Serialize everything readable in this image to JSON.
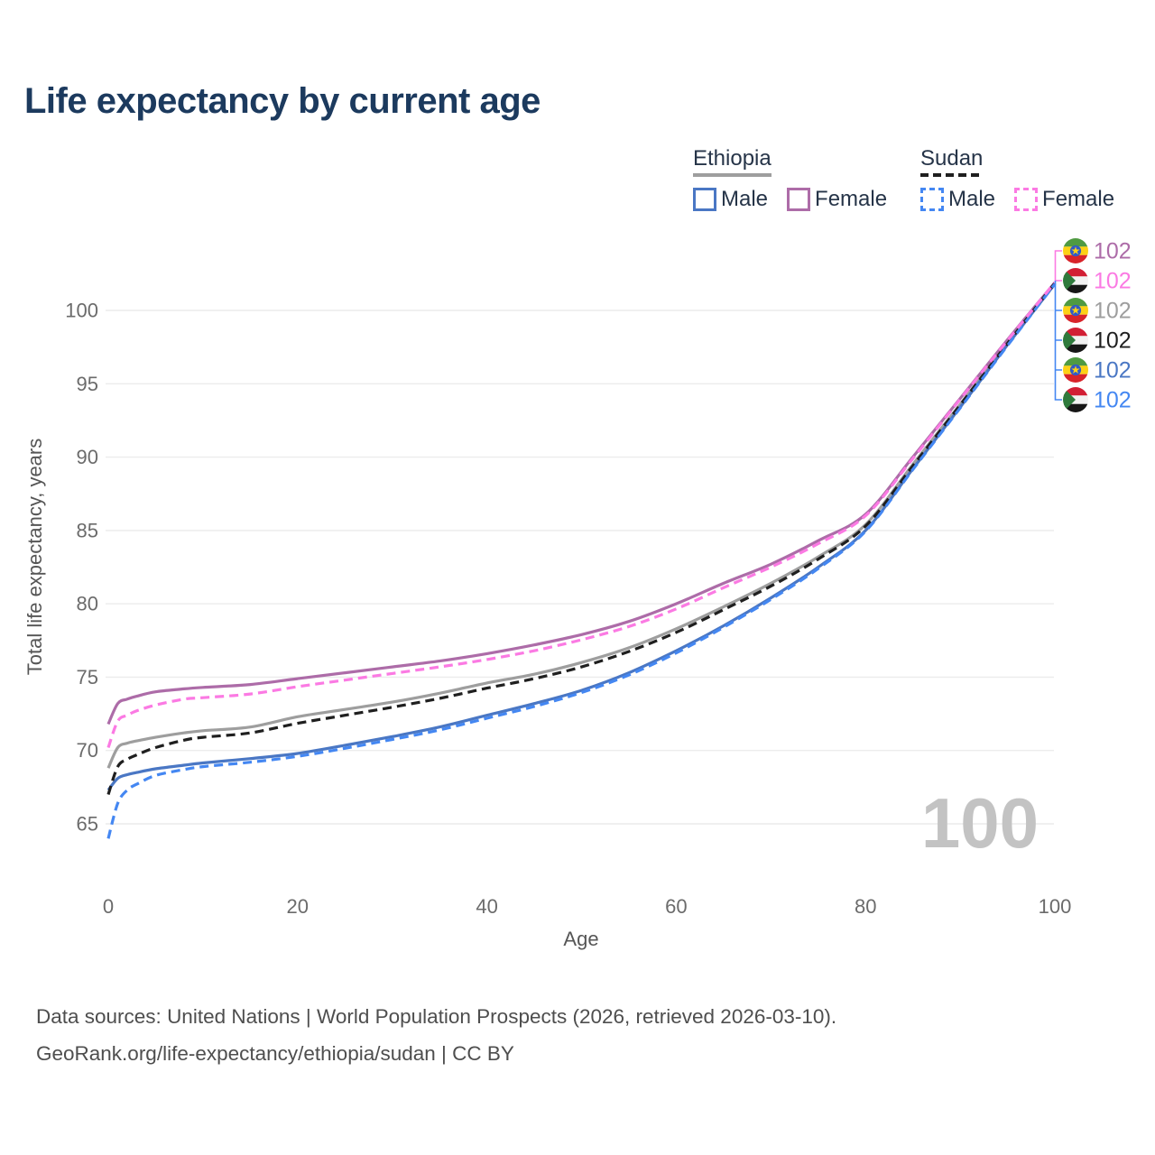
{
  "title": "Life expectancy by current age",
  "legend": {
    "groups": [
      {
        "label": "Ethiopia",
        "line_style": "solid",
        "rule_color": "#9e9e9e",
        "items": [
          {
            "label": "Male",
            "color": "#4a77c4",
            "dashed": false
          },
          {
            "label": "Female",
            "color": "#ad6ca8",
            "dashed": false
          }
        ]
      },
      {
        "label": "Sudan",
        "line_style": "dashed",
        "rule_color": "#1f1f1f",
        "items": [
          {
            "label": "Male",
            "color": "#4487f2",
            "dashed": true
          },
          {
            "label": "Female",
            "color": "#fb7ae3",
            "dashed": true
          }
        ]
      }
    ]
  },
  "chart_data": {
    "type": "line",
    "title": "Life expectancy by current age",
    "xlabel": "Age",
    "ylabel": "Total life expectancy, years",
    "xticks": [
      0,
      20,
      40,
      60,
      80,
      100
    ],
    "yticks": [
      65,
      70,
      75,
      80,
      85,
      90,
      95,
      100
    ],
    "xlim": [
      0,
      100
    ],
    "ylim": [
      63.5,
      103
    ],
    "grid": "horizontal",
    "legend_position": "top-right",
    "x": [
      0,
      1,
      2,
      3,
      5,
      8,
      10,
      15,
      20,
      25,
      30,
      35,
      40,
      45,
      50,
      55,
      60,
      65,
      70,
      75,
      80,
      85,
      90,
      95,
      100
    ],
    "series": [
      {
        "name": "Ethiopia — all",
        "country": "Ethiopia",
        "sex": "All",
        "color": "#9e9e9e",
        "dash": false,
        "values": [
          68.8,
          70.2,
          70.5,
          70.65,
          70.9,
          71.2,
          71.35,
          71.6,
          72.3,
          72.8,
          73.3,
          73.9,
          74.6,
          75.2,
          76.0,
          77.0,
          78.3,
          79.8,
          81.4,
          83.2,
          85.4,
          89.5,
          93.6,
          97.8,
          101.85
        ]
      },
      {
        "name": "Ethiopia — male",
        "country": "Ethiopia",
        "sex": "Male",
        "color": "#4a77c4",
        "dash": false,
        "values": [
          67.3,
          68.1,
          68.35,
          68.5,
          68.75,
          69.0,
          69.15,
          69.45,
          69.8,
          70.35,
          70.95,
          71.6,
          72.4,
          73.2,
          74.1,
          75.3,
          76.8,
          78.5,
          80.4,
          82.5,
          85.0,
          89.2,
          93.4,
          97.65,
          101.8
        ]
      },
      {
        "name": "Ethiopia — female",
        "country": "Ethiopia",
        "sex": "Female",
        "color": "#ad6ca8",
        "dash": false,
        "values": [
          71.8,
          73.2,
          73.5,
          73.7,
          74.0,
          74.2,
          74.3,
          74.5,
          74.9,
          75.3,
          75.7,
          76.1,
          76.6,
          77.2,
          77.9,
          78.8,
          80.0,
          81.4,
          82.7,
          84.3,
          86.1,
          90.0,
          94.0,
          98.0,
          101.9
        ]
      },
      {
        "name": "Sudan — all",
        "country": "Sudan",
        "sex": "All",
        "color": "#1f1f1f",
        "dash": true,
        "values": [
          67.0,
          68.9,
          69.4,
          69.7,
          70.2,
          70.7,
          70.9,
          71.2,
          71.85,
          72.4,
          72.95,
          73.55,
          74.25,
          74.9,
          75.7,
          76.75,
          78.05,
          79.6,
          81.2,
          83.05,
          85.3,
          89.4,
          93.55,
          97.75,
          101.85
        ]
      },
      {
        "name": "Sudan — male",
        "country": "Sudan",
        "sex": "Male",
        "color": "#4487f2",
        "dash": true,
        "values": [
          64.0,
          66.4,
          67.3,
          67.7,
          68.3,
          68.7,
          68.9,
          69.2,
          69.6,
          70.15,
          70.75,
          71.4,
          72.2,
          73.0,
          73.95,
          75.15,
          76.65,
          78.4,
          80.3,
          82.4,
          84.95,
          89.15,
          93.35,
          97.6,
          101.8
        ]
      },
      {
        "name": "Sudan — female",
        "country": "Sudan",
        "sex": "Female",
        "color": "#fb7ae3",
        "dash": true,
        "values": [
          70.2,
          72.0,
          72.4,
          72.7,
          73.1,
          73.5,
          73.6,
          73.85,
          74.35,
          74.8,
          75.25,
          75.7,
          76.2,
          76.8,
          77.55,
          78.45,
          79.65,
          81.1,
          82.5,
          84.1,
          86.0,
          89.9,
          93.95,
          97.95,
          101.9
        ]
      }
    ]
  },
  "end_labels": [
    {
      "flag": "ethiopia",
      "value": "102",
      "color": "#ad6ca8"
    },
    {
      "flag": "sudan",
      "value": "102",
      "color": "#fb7ae3"
    },
    {
      "flag": "ethiopia",
      "value": "102",
      "color": "#9e9e9e"
    },
    {
      "flag": "sudan",
      "value": "102",
      "color": "#1f1f1f"
    },
    {
      "flag": "ethiopia",
      "value": "102",
      "color": "#4a77c4"
    },
    {
      "flag": "sudan",
      "value": "102",
      "color": "#4487f2"
    }
  ],
  "bracket_colors": {
    "top": "#fb7ae3",
    "bottom": "#4487f2"
  },
  "hover_value": "100",
  "footer": {
    "line1": "Data sources: United Nations | World Population Prospects (2026, retrieved 2026-03-10).",
    "line2": "GeoRank.org/life-expectancy/ethiopia/sudan | CC BY"
  }
}
